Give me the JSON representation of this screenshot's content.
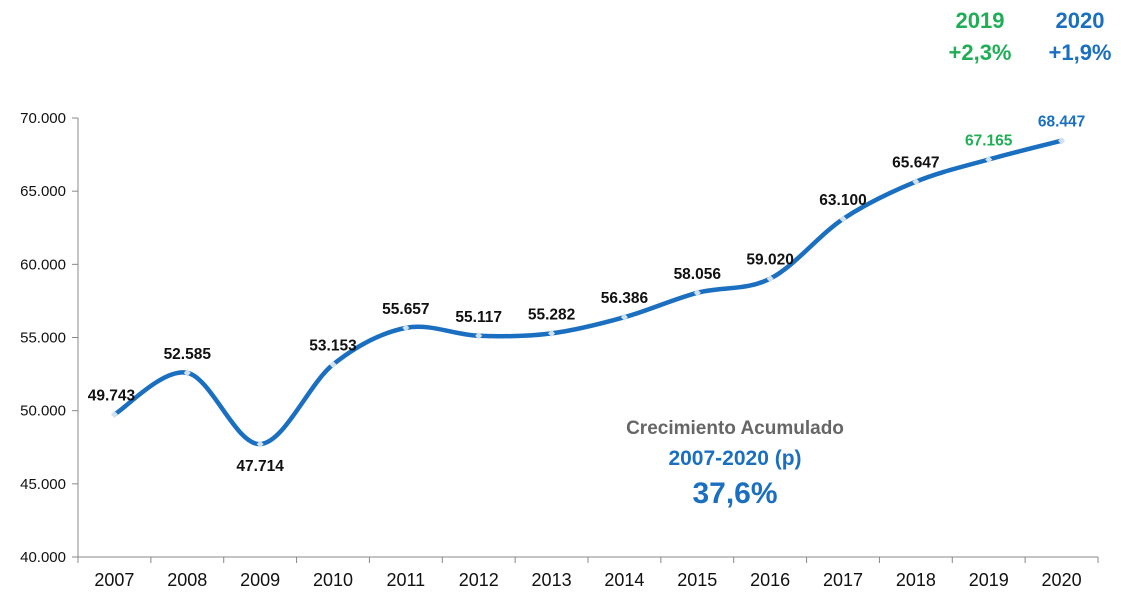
{
  "chart_data": {
    "type": "line",
    "categories": [
      "2007",
      "2008",
      "2009",
      "2010",
      "2011",
      "2012",
      "2013",
      "2014",
      "2015",
      "2016",
      "2017",
      "2018",
      "2019",
      "2020"
    ],
    "values": [
      49743,
      52585,
      47714,
      53153,
      55657,
      55117,
      55282,
      56386,
      58056,
      59020,
      63100,
      65647,
      67165,
      68447
    ],
    "data_labels": [
      "49.743",
      "52.585",
      "47.714",
      "53.153",
      "55.657",
      "55.117",
      "55.282",
      "56.386",
      "58.056",
      "59.020",
      "63.100",
      "65.647",
      "67.165",
      "68.447"
    ],
    "ylim": [
      40000,
      70000
    ],
    "yticks": [
      40000,
      45000,
      50000,
      55000,
      60000,
      65000,
      70000
    ],
    "ytick_labels": [
      "40.000",
      "45.000",
      "50.000",
      "55.000",
      "60.000",
      "65.000",
      "70.000"
    ],
    "grid": false,
    "series_color": "#1a6fc0",
    "label_colors": {
      "default": "#111111",
      "2019": "#1fae55",
      "2020": "#1a6fc0"
    }
  },
  "highlights": [
    {
      "year": "2019",
      "growth": "+2,3%",
      "color": "#1fae55"
    },
    {
      "year": "2020",
      "growth": "+1,9%",
      "color": "#1a6fc0"
    }
  ],
  "annotation": {
    "title": "Crecimiento Acumulado",
    "period": "2007-2020 (p)",
    "value": "37,6%",
    "title_color": "#666666",
    "value_color": "#1a6fc0"
  }
}
